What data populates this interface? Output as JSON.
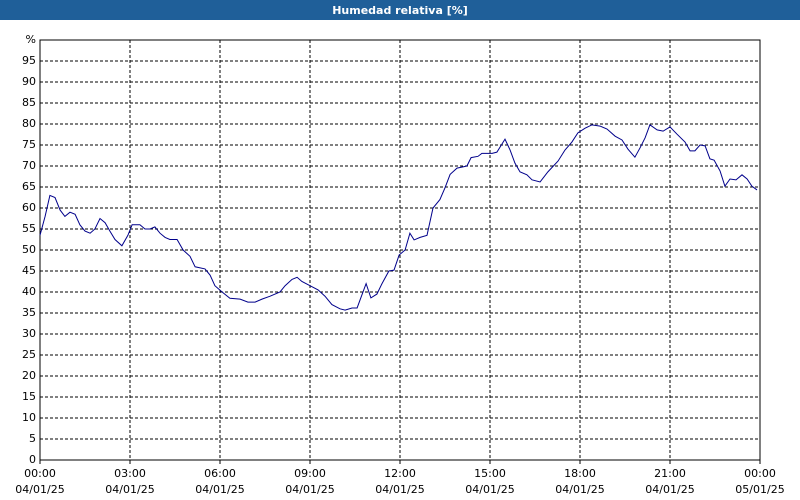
{
  "chart_data": {
    "type": "line",
    "title": "Humedad relativa [%]",
    "x": [
      0,
      0.17,
      0.33,
      0.5,
      0.67,
      0.83,
      1,
      1.17,
      1.33,
      1.5,
      1.67,
      1.83,
      2,
      2.17,
      2.33,
      2.5,
      2.73,
      2.93,
      3.07,
      3.33,
      3.5,
      3.67,
      3.83,
      4,
      4.17,
      4.33,
      4.57,
      4.77,
      5,
      5.17,
      5.5,
      5.67,
      5.83,
      6.07,
      6.33,
      6.67,
      6.93,
      7.17,
      7.4,
      7.67,
      8,
      8.17,
      8.4,
      8.57,
      8.73,
      9,
      9.27,
      9.5,
      9.73,
      10,
      10.17,
      10.4,
      10.57,
      10.73,
      10.87,
      11.03,
      11.23,
      11.4,
      11.63,
      11.8,
      11.97,
      12.17,
      12.33,
      12.47,
      12.67,
      12.9,
      13.1,
      13.33,
      13.5,
      13.67,
      13.9,
      14.1,
      14.23,
      14.37,
      14.6,
      14.73,
      15.07,
      15.23,
      15.5,
      15.67,
      15.83,
      16,
      16.23,
      16.4,
      16.67,
      16.93,
      17.27,
      17.5,
      17.73,
      17.93,
      18.17,
      18.4,
      18.67,
      18.9,
      19.17,
      19.4,
      19.6,
      19.83,
      20,
      20.17,
      20.33,
      20.57,
      20.77,
      21,
      21.23,
      21.5,
      21.67,
      21.83,
      22,
      22.17,
      22.33,
      22.47,
      22.67,
      22.83,
      23,
      23.2,
      23.4,
      23.57,
      23.73,
      23.9
    ],
    "values": [
      53.5,
      58,
      63,
      62.5,
      59.5,
      58,
      59,
      58.5,
      56,
      54.5,
      54,
      55,
      57.5,
      56.5,
      54.5,
      52.5,
      51,
      53.5,
      56,
      56,
      55,
      55,
      55.5,
      54,
      53,
      52.5,
      52.5,
      50,
      48.5,
      46,
      45.5,
      44,
      41.5,
      40,
      38.5,
      38.3,
      37.6,
      37.6,
      38.3,
      39,
      40,
      41.5,
      43,
      43.5,
      42.5,
      41.5,
      40.5,
      39,
      37,
      36,
      35.7,
      36.2,
      36.2,
      39.3,
      42,
      38.6,
      39.5,
      42,
      45,
      45.2,
      48.8,
      50,
      54,
      52.4,
      53,
      53.5,
      60,
      62,
      64.8,
      68,
      69.5,
      69.8,
      70,
      72,
      72.3,
      73,
      73,
      73.3,
      76.4,
      73.8,
      70.7,
      68.6,
      67.9,
      66.7,
      66.2,
      68.6,
      71.2,
      73.8,
      75.7,
      77.9,
      79,
      79.8,
      79.5,
      78.8,
      77.1,
      76.2,
      74,
      72.1,
      74.3,
      76.7,
      79.8,
      78.6,
      78.3,
      79.3,
      77.6,
      75.7,
      73.6,
      73.6,
      75,
      74.8,
      71.7,
      71.4,
      68.8,
      65.2,
      66.9,
      66.7,
      67.9,
      66.9,
      65.2,
      64.3
    ],
    "color": "#00008b",
    "xlim": [
      0,
      24
    ],
    "xticks": [
      {
        "value": 0,
        "label": [
          "00:00",
          "04/01/25"
        ]
      },
      {
        "value": 3,
        "label": [
          "03:00",
          "04/01/25"
        ]
      },
      {
        "value": 6,
        "label": [
          "06:00",
          "04/01/25"
        ]
      },
      {
        "value": 9,
        "label": [
          "09:00",
          "04/01/25"
        ]
      },
      {
        "value": 12,
        "label": [
          "12:00",
          "04/01/25"
        ]
      },
      {
        "value": 15,
        "label": [
          "15:00",
          "04/01/25"
        ]
      },
      {
        "value": 18,
        "label": [
          "18:00",
          "04/01/25"
        ]
      },
      {
        "value": 21,
        "label": [
          "21:00",
          "04/01/25"
        ]
      },
      {
        "value": 24,
        "label": [
          "00:00",
          "05/01/25"
        ]
      }
    ],
    "ylim": [
      0,
      100
    ],
    "yticks": [
      0,
      5,
      10,
      15,
      20,
      25,
      30,
      35,
      40,
      45,
      50,
      55,
      60,
      65,
      70,
      75,
      80,
      85,
      90,
      95,
      {
        "value": 100,
        "label": "%"
      }
    ],
    "grid": true
  }
}
